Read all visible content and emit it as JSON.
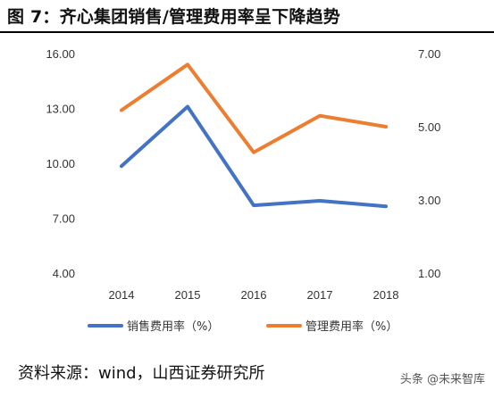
{
  "page": {
    "figure_title": "图  7：齐心集团销售/管理费用率呈下降趋势",
    "source": "资料来源：wind，山西证券研究所",
    "watermark": "头条 @未来智库"
  },
  "colors": {
    "series_sales": "#4472C4",
    "series_admin": "#ED7D31",
    "axis_text": "#333333",
    "title_rule": "#000000"
  },
  "chart_data": {
    "type": "line",
    "title": "",
    "categories": [
      "2014",
      "2015",
      "2016",
      "2017",
      "2018"
    ],
    "series": [
      {
        "name": "销售费用率（%）",
        "axis": "left",
        "color": "#4472C4",
        "values": [
          9.85,
          13.1,
          7.7,
          7.95,
          7.65
        ]
      },
      {
        "name": "管理费用率（%）",
        "axis": "right",
        "color": "#ED7D31",
        "values": [
          5.45,
          6.7,
          4.3,
          5.3,
          5.0
        ]
      }
    ],
    "y_left": {
      "range": [
        4,
        16
      ],
      "ticks": [
        "16.00",
        "13.00",
        "10.00",
        "7.00",
        "4.00"
      ],
      "tick_values": [
        16,
        13,
        10,
        7,
        4
      ]
    },
    "y_right": {
      "range": [
        1,
        7
      ],
      "ticks": [
        "7.00",
        "5.00",
        "3.00",
        "1.00"
      ],
      "tick_values": [
        7,
        5,
        3,
        1
      ]
    },
    "grid": false,
    "legend_position": "bottom"
  }
}
